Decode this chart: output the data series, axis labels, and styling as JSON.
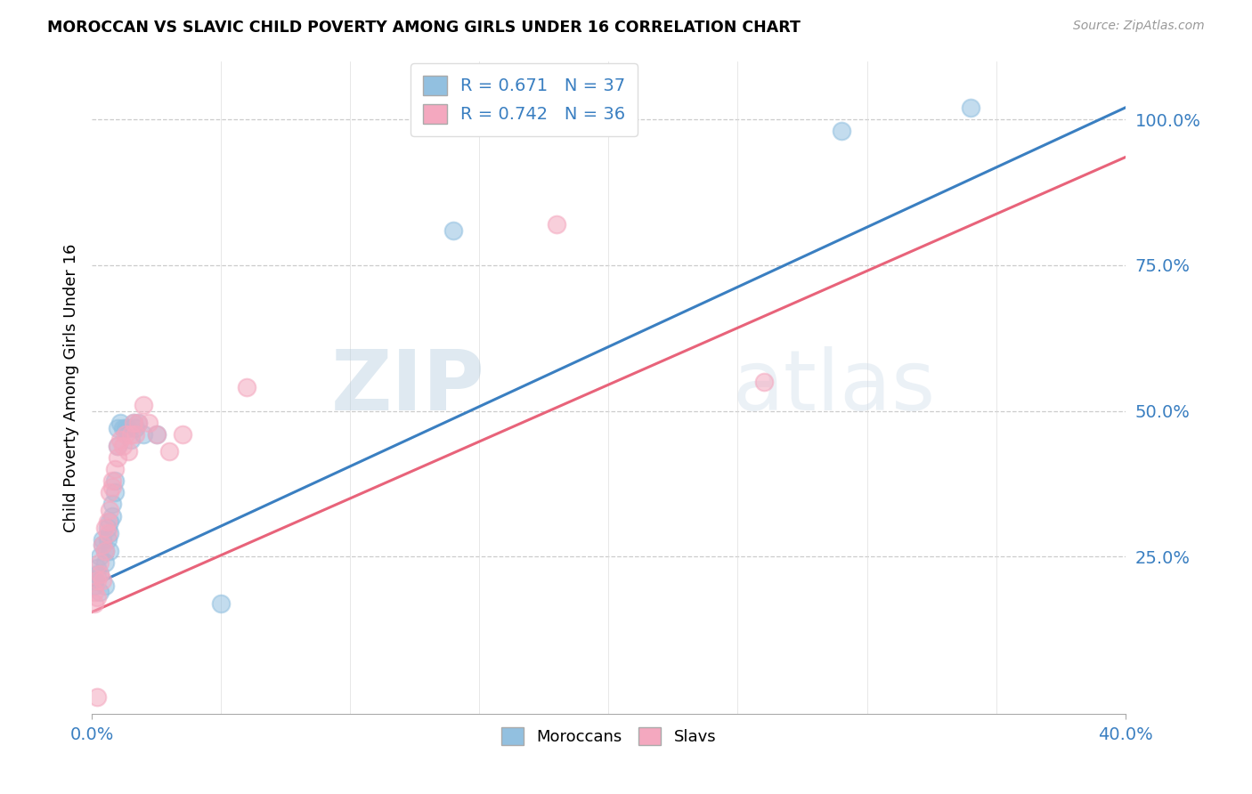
{
  "title": "MOROCCAN VS SLAVIC CHILD POVERTY AMONG GIRLS UNDER 16 CORRELATION CHART",
  "source": "Source: ZipAtlas.com",
  "ylabel": "Child Poverty Among Girls Under 16",
  "ytick_labels": [
    "100.0%",
    "75.0%",
    "50.0%",
    "25.0%"
  ],
  "ytick_values": [
    1.0,
    0.75,
    0.5,
    0.25
  ],
  "xlim": [
    0.0,
    0.4
  ],
  "ylim": [
    -0.02,
    1.1
  ],
  "watermark_zip": "ZIP",
  "watermark_atlas": "atlas",
  "blue_R": "0.671",
  "blue_N": "37",
  "pink_R": "0.742",
  "pink_N": "36",
  "blue_color": "#92c0e0",
  "pink_color": "#f4a8bf",
  "blue_line_color": "#3a7fc1",
  "pink_line_color": "#e8637a",
  "legend_label_moroccans": "Moroccans",
  "legend_label_slavs": "Slavs",
  "moroccan_x": [
    0.001,
    0.001,
    0.002,
    0.002,
    0.003,
    0.003,
    0.003,
    0.004,
    0.004,
    0.005,
    0.005,
    0.005,
    0.006,
    0.006,
    0.007,
    0.007,
    0.007,
    0.008,
    0.008,
    0.009,
    0.009,
    0.01,
    0.01,
    0.011,
    0.012,
    0.013,
    0.014,
    0.015,
    0.016,
    0.017,
    0.018,
    0.02,
    0.025,
    0.05,
    0.14,
    0.29,
    0.34
  ],
  "moroccan_y": [
    0.2,
    0.21,
    0.22,
    0.23,
    0.19,
    0.22,
    0.25,
    0.27,
    0.28,
    0.2,
    0.24,
    0.26,
    0.28,
    0.3,
    0.26,
    0.29,
    0.31,
    0.34,
    0.32,
    0.36,
    0.38,
    0.44,
    0.47,
    0.48,
    0.47,
    0.47,
    0.47,
    0.45,
    0.48,
    0.47,
    0.48,
    0.46,
    0.46,
    0.17,
    0.81,
    0.98,
    1.02
  ],
  "slav_x": [
    0.001,
    0.001,
    0.002,
    0.002,
    0.003,
    0.003,
    0.004,
    0.004,
    0.005,
    0.005,
    0.006,
    0.006,
    0.007,
    0.007,
    0.008,
    0.008,
    0.009,
    0.01,
    0.01,
    0.011,
    0.012,
    0.013,
    0.014,
    0.015,
    0.016,
    0.017,
    0.018,
    0.02,
    0.022,
    0.025,
    0.03,
    0.035,
    0.06,
    0.18,
    0.26,
    0.002
  ],
  "slav_y": [
    0.17,
    0.19,
    0.18,
    0.21,
    0.22,
    0.24,
    0.21,
    0.27,
    0.26,
    0.3,
    0.29,
    0.31,
    0.33,
    0.36,
    0.38,
    0.37,
    0.4,
    0.42,
    0.44,
    0.45,
    0.44,
    0.46,
    0.43,
    0.46,
    0.48,
    0.46,
    0.48,
    0.51,
    0.48,
    0.46,
    0.43,
    0.46,
    0.54,
    0.82,
    0.55,
    0.01
  ],
  "blue_line_x0": 0.0,
  "blue_line_x1": 0.4,
  "blue_line_y0": 0.2,
  "blue_line_y1": 1.02,
  "pink_line_x0": 0.0,
  "pink_line_x1": 0.4,
  "pink_line_y0": 0.155,
  "pink_line_y1": 0.935
}
